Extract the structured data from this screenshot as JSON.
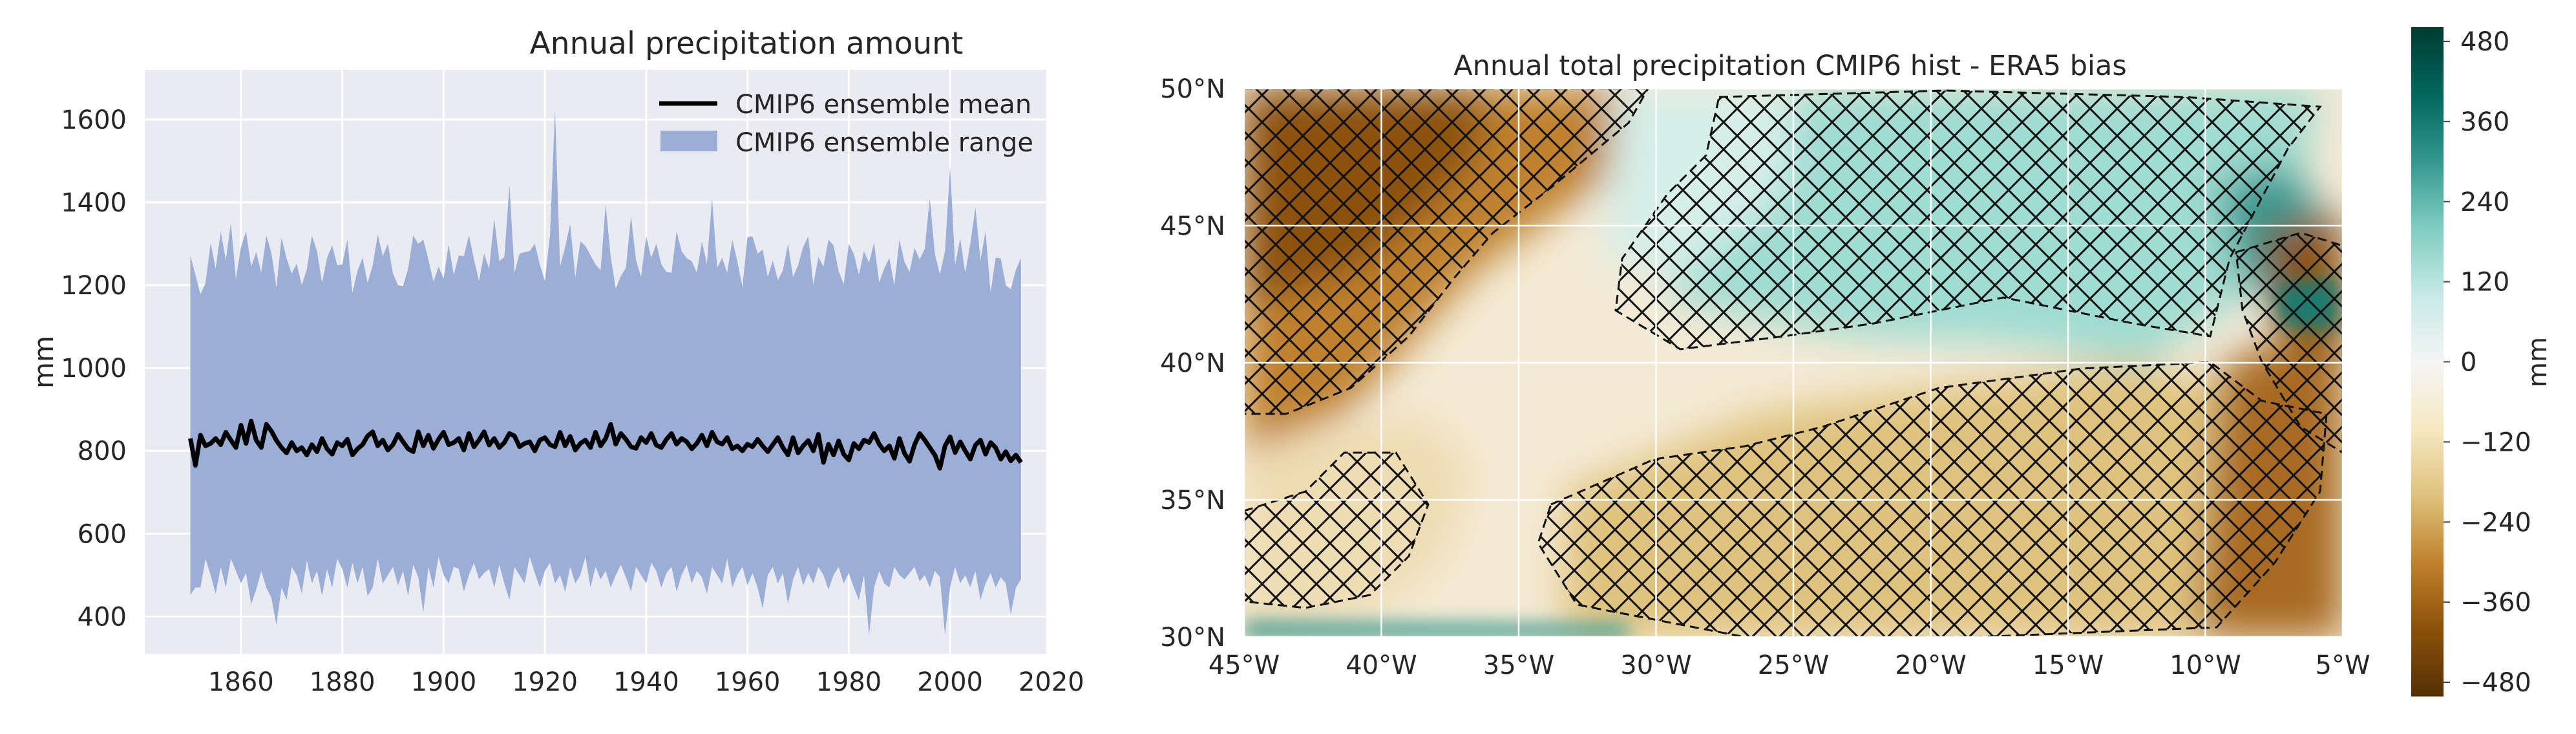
{
  "chart_data": [
    {
      "type": "line",
      "title": "Annual precipitation amount",
      "xlabel": "",
      "ylabel": "mm",
      "xlim": [
        1841,
        2019
      ],
      "ylim": [
        310,
        1720
      ],
      "xticks": [
        1860,
        1880,
        1900,
        1920,
        1940,
        1960,
        1980,
        2000,
        2020
      ],
      "yticks": [
        400,
        600,
        800,
        1000,
        1200,
        1400,
        1600
      ],
      "grid": true,
      "legend_position": "top-right",
      "legend": {
        "mean_label": "CMIP6 ensemble mean",
        "range_label": "CMIP6 ensemble range"
      },
      "colors": {
        "background": "#eaeaf2",
        "range_fill": "#9aaed6",
        "mean_line": "#000000",
        "grid": "#ffffff"
      },
      "x_start": 1850,
      "x_end": 2014,
      "series": [
        {
          "name": "CMIP6 ensemble mean",
          "values": [
            830,
            765,
            838,
            812,
            818,
            830,
            815,
            845,
            826,
            808,
            862,
            818,
            872,
            826,
            808,
            864,
            848,
            825,
            808,
            795,
            820,
            800,
            808,
            790,
            815,
            798,
            830,
            805,
            792,
            820,
            812,
            828,
            790,
            805,
            815,
            836,
            846,
            812,
            826,
            802,
            815,
            840,
            822,
            805,
            798,
            846,
            812,
            838,
            806,
            828,
            845,
            815,
            820,
            830,
            802,
            842,
            810,
            826,
            846,
            814,
            830,
            808,
            820,
            842,
            836,
            810,
            818,
            822,
            800,
            826,
            832,
            815,
            810,
            845,
            812,
            835,
            802,
            818,
            826,
            808,
            845,
            812,
            830,
            864,
            816,
            842,
            828,
            810,
            806,
            832,
            820,
            842,
            814,
            808,
            828,
            842,
            816,
            830,
            822,
            805,
            818,
            838,
            812,
            845,
            822,
            816,
            832,
            805,
            812,
            800,
            816,
            810,
            828,
            812,
            798,
            815,
            832,
            808,
            790,
            832,
            795,
            812,
            825,
            800,
            840,
            772,
            816,
            790,
            824,
            792,
            778,
            818,
            805,
            826,
            820,
            842,
            816,
            800,
            812,
            782,
            830,
            794,
            775,
            815,
            842,
            826,
            808,
            790,
            758,
            812,
            834,
            796,
            822,
            800,
            780,
            814,
            826,
            792,
            820,
            808,
            780,
            798,
            776,
            790,
            772
          ]
        },
        {
          "name": "CMIP6 ensemble max",
          "values": [
            1272,
            1225,
            1178,
            1205,
            1302,
            1240,
            1330,
            1260,
            1350,
            1215,
            1292,
            1330,
            1245,
            1280,
            1230,
            1320,
            1278,
            1195,
            1315,
            1265,
            1228,
            1252,
            1200,
            1238,
            1320,
            1282,
            1205,
            1266,
            1296,
            1248,
            1250,
            1310,
            1182,
            1235,
            1266,
            1205,
            1248,
            1322,
            1270,
            1300,
            1228,
            1200,
            1198,
            1240,
            1320,
            1300,
            1310,
            1262,
            1208,
            1245,
            1216,
            1298,
            1225,
            1272,
            1270,
            1320,
            1262,
            1210,
            1276,
            1240,
            1360,
            1258,
            1268,
            1442,
            1230,
            1276,
            1280,
            1282,
            1300,
            1250,
            1210,
            1320,
            1625,
            1245,
            1292,
            1348,
            1218,
            1306,
            1295,
            1272,
            1250,
            1236,
            1395,
            1268,
            1192,
            1222,
            1242,
            1366,
            1260,
            1220,
            1318,
            1266,
            1300,
            1250,
            1232,
            1230,
            1330,
            1282,
            1265,
            1258,
            1230,
            1305,
            1252,
            1410,
            1242,
            1266,
            1230,
            1310,
            1258,
            1195,
            1316,
            1318,
            1276,
            1286,
            1220,
            1260,
            1212,
            1236,
            1300,
            1220,
            1248,
            1292,
            1318,
            1200,
            1268,
            1245,
            1310,
            1296,
            1234,
            1202,
            1300,
            1275,
            1225,
            1282,
            1254,
            1302,
            1206,
            1240,
            1266,
            1200,
            1310,
            1256,
            1232,
            1290,
            1262,
            1288,
            1410,
            1275,
            1226,
            1282,
            1488,
            1250,
            1312,
            1230,
            1300,
            1388,
            1260,
            1330,
            1182,
            1266,
            1265,
            1200,
            1190,
            1238,
            1265
          ]
        },
        {
          "name": "CMIP6 ensemble min",
          "values": [
            452,
            470,
            470,
            540,
            500,
            455,
            520,
            470,
            540,
            510,
            480,
            505,
            430,
            465,
            510,
            470,
            445,
            380,
            470,
            440,
            520,
            500,
            455,
            535,
            480,
            510,
            450,
            515,
            470,
            540,
            515,
            470,
            530,
            480,
            520,
            450,
            470,
            540,
            480,
            500,
            520,
            475,
            510,
            450,
            525,
            495,
            410,
            520,
            470,
            545,
            500,
            480,
            520,
            515,
            460,
            500,
            530,
            490,
            505,
            515,
            470,
            525,
            480,
            440,
            520,
            500,
            480,
            545,
            505,
            470,
            510,
            530,
            480,
            500,
            460,
            520,
            480,
            500,
            545,
            470,
            520,
            490,
            510,
            470,
            500,
            525,
            495,
            460,
            520,
            500,
            480,
            530,
            510,
            470,
            505,
            520,
            460,
            500,
            525,
            480,
            510,
            495,
            455,
            520,
            500,
            480,
            540,
            470,
            500,
            520,
            475,
            505,
            470,
            420,
            500,
            520,
            480,
            505,
            430,
            490,
            520,
            475,
            505,
            480,
            520,
            500,
            465,
            500,
            520,
            480,
            505,
            470,
            440,
            500,
            355,
            470,
            510,
            480,
            470,
            520,
            500,
            490,
            505,
            520,
            485,
            500,
            470,
            510,
            495,
            355,
            470,
            520,
            480,
            500,
            470,
            510,
            440,
            480,
            505,
            470,
            495,
            480,
            405,
            470,
            490
          ]
        }
      ]
    },
    {
      "type": "heatmap",
      "title": "Annual total precipitation CMIP6 hist - ERA5 bias",
      "xlabel": "",
      "ylabel": "",
      "x_range": [
        -45,
        -5
      ],
      "y_range": [
        30,
        50
      ],
      "xtick_labels": [
        "45°W",
        "40°W",
        "35°W",
        "30°W",
        "25°W",
        "20°W",
        "15°W",
        "10°W",
        "5°W"
      ],
      "ytick_labels": [
        "50°N",
        "45°N",
        "40°N",
        "35°N",
        "30°N"
      ],
      "grid": true,
      "hatching": "crosshatch (x) over regions with significant bias",
      "colorbar": {
        "label": "mm",
        "range": [
          -480,
          480
        ],
        "tick_labels": [
          "480",
          "360",
          "240",
          "120",
          "0",
          "−120",
          "−240",
          "−360",
          "−480"
        ],
        "colormap": "BrBG",
        "colors": [
          "#543005",
          "#8c510a",
          "#bf812d",
          "#dfc27d",
          "#f6e8c3",
          "#f5f5f5",
          "#c7eae5",
          "#80cdc1",
          "#35978f",
          "#01665e",
          "#003c30"
        ]
      }
    }
  ]
}
